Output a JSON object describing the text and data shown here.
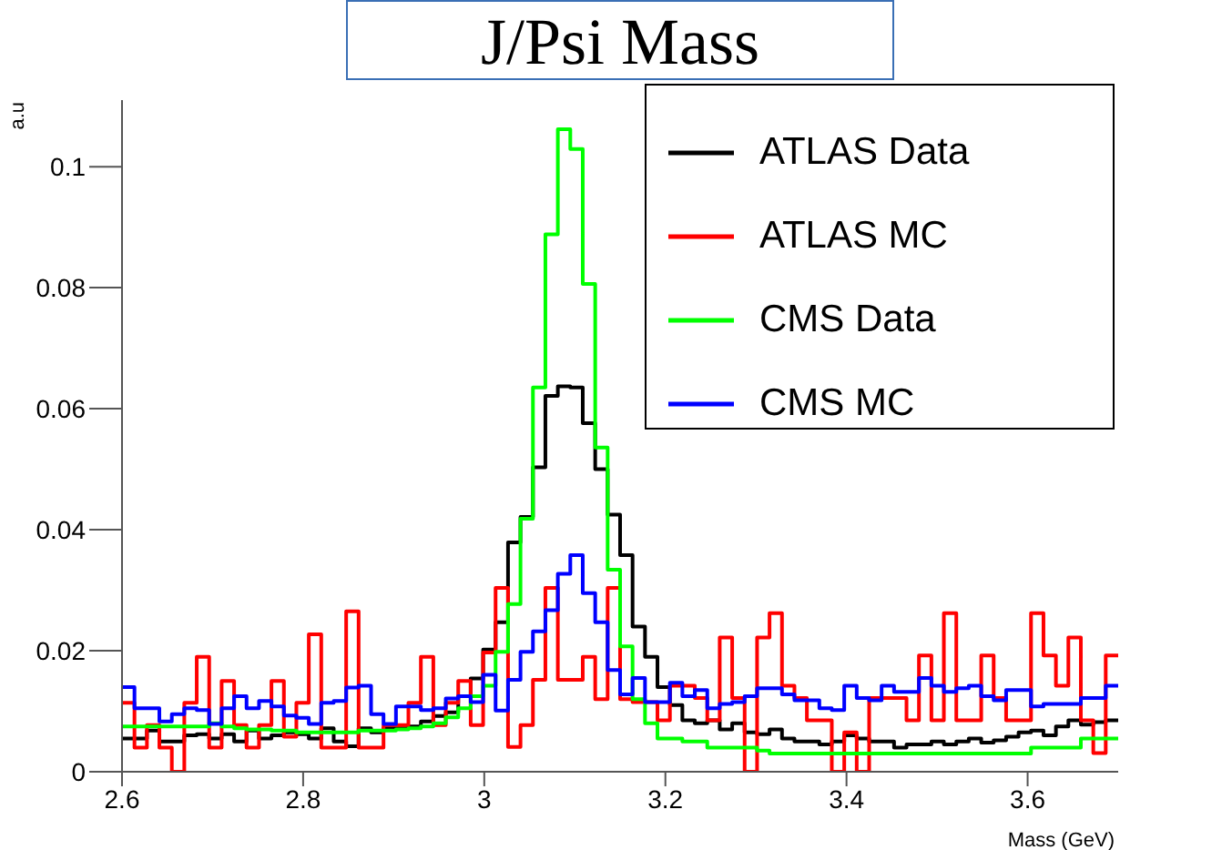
{
  "chart_data": {
    "type": "histogram",
    "title": "J/Psi Mass",
    "xlabel": "Mass (GeV)",
    "ylabel": "a.u",
    "bins": [
      2.6,
      2.61375,
      2.6275,
      2.64125,
      2.655,
      2.66875,
      2.6825,
      2.69625,
      2.71,
      2.72375,
      2.7375,
      2.75125,
      2.765,
      2.77875,
      2.7925,
      2.80625,
      2.82,
      2.83375,
      2.8475,
      2.86125,
      2.875,
      2.88875,
      2.9025,
      2.91625,
      2.93,
      2.94375,
      2.9575,
      2.97125,
      2.985,
      2.99875,
      3.0125,
      3.02625,
      3.04,
      3.05375,
      3.0675,
      3.08125,
      3.095,
      3.10875,
      3.1225,
      3.13625,
      3.15,
      3.16375,
      3.1775,
      3.19125,
      3.205,
      3.21875,
      3.2325,
      3.24625,
      3.26,
      3.27375,
      3.2875,
      3.30125,
      3.315,
      3.32875,
      3.3425,
      3.35625,
      3.37,
      3.38375,
      3.3975,
      3.41125,
      3.425,
      3.43875,
      3.4525,
      3.46625,
      3.48,
      3.49375,
      3.5075,
      3.52125,
      3.535,
      3.54875,
      3.5625,
      3.57625,
      3.59,
      3.60375,
      3.6175,
      3.63125,
      3.645,
      3.65875,
      3.6725,
      3.68625,
      3.7
    ],
    "series": [
      {
        "name": "ATLAS Data",
        "color": "#000000",
        "values": [
          0.0055,
          0.0055,
          0.0068,
          0.005,
          0.005,
          0.006,
          0.0062,
          0.0055,
          0.0062,
          0.005,
          0.0068,
          0.0055,
          0.006,
          0.0065,
          0.0062,
          0.0055,
          0.0072,
          0.005,
          0.0042,
          0.0072,
          0.0065,
          0.0072,
          0.0072,
          0.0075,
          0.0083,
          0.0092,
          0.0098,
          0.0125,
          0.0154,
          0.0202,
          0.0247,
          0.0379,
          0.0421,
          0.0503,
          0.0621,
          0.0637,
          0.0635,
          0.0576,
          0.05,
          0.0425,
          0.0358,
          0.024,
          0.019,
          0.014,
          0.011,
          0.0085,
          0.008,
          0.0085,
          0.007,
          0.008,
          0.0065,
          0.0062,
          0.007,
          0.0055,
          0.005,
          0.005,
          0.0045,
          0.005,
          0.006,
          0.0055,
          0.005,
          0.005,
          0.004,
          0.0045,
          0.0045,
          0.005,
          0.0045,
          0.005,
          0.0055,
          0.0048,
          0.0052,
          0.0058,
          0.0065,
          0.0068,
          0.006,
          0.0075,
          0.0085,
          0.0078,
          0.0082,
          0.0085
        ]
      },
      {
        "name": "ATLAS MC",
        "color": "#ff0000",
        "values": [
          0.0114,
          0.004,
          0.0077,
          0.004,
          0,
          0.0114,
          0.019,
          0.004,
          0.015,
          0.0077,
          0.004,
          0.0077,
          0.015,
          0.0058,
          0.0114,
          0.0227,
          0.004,
          0.004,
          0.0265,
          0.004,
          0.004,
          0.0077,
          0.0077,
          0.0114,
          0.019,
          0.0077,
          0.0114,
          0.015,
          0.0077,
          0.0197,
          0.0304,
          0.0041,
          0.0077,
          0.0152,
          0.0304,
          0.0152,
          0.0152,
          0.019,
          0.012,
          0.0304,
          0.012,
          0.0115,
          0.0115,
          0.0085,
          0.0142,
          0.0142,
          0.0122,
          0.0085,
          0.0222,
          0.0122,
          0,
          0.0222,
          0.0262,
          0.0142,
          0.0122,
          0.0085,
          0.0085,
          0,
          0.0065,
          0,
          0.0122,
          0.0122,
          0.0122,
          0.0085,
          0.0192,
          0.0085,
          0.0262,
          0.0085,
          0.0085,
          0.0192,
          0.0122,
          0.0085,
          0.0085,
          0.0262,
          0.0192,
          0.0142,
          0.0222,
          0.0085,
          0.0031,
          0.0192
        ]
      },
      {
        "name": "CMS Data",
        "color": "#00ff00",
        "values": [
          0.0075,
          0.0075,
          0.0075,
          0.0075,
          0.0075,
          0.0075,
          0.0075,
          0.008,
          0.0075,
          0.0072,
          0.007,
          0.007,
          0.0068,
          0.0068,
          0.0065,
          0.0065,
          0.0065,
          0.0065,
          0.0065,
          0.0068,
          0.0068,
          0.0068,
          0.007,
          0.0072,
          0.0075,
          0.008,
          0.009,
          0.0105,
          0.0125,
          0.0142,
          0.0198,
          0.0277,
          0.0418,
          0.0635,
          0.0888,
          0.1062,
          0.1029,
          0.0806,
          0.0536,
          0.0334,
          0.0207,
          0.012,
          0.008,
          0.0055,
          0.0055,
          0.005,
          0.005,
          0.004,
          0.004,
          0.004,
          0.004,
          0.0035,
          0.003,
          0.003,
          0.003,
          0.003,
          0.003,
          0.003,
          0.003,
          0.003,
          0.003,
          0.003,
          0.003,
          0.003,
          0.003,
          0.003,
          0.003,
          0.003,
          0.003,
          0.003,
          0.003,
          0.003,
          0.003,
          0.004,
          0.004,
          0.004,
          0.004,
          0.0055,
          0.0055,
          0.0055
        ]
      },
      {
        "name": "CMS MC",
        "color": "#0000ff",
        "values": [
          0.014,
          0.0105,
          0.0105,
          0.0083,
          0.0095,
          0.0105,
          0.0102,
          0.0079,
          0.0105,
          0.0125,
          0.0105,
          0.0117,
          0.0108,
          0.0093,
          0.0089,
          0.0079,
          0.0114,
          0.0117,
          0.0139,
          0.0142,
          0.0095,
          0.0079,
          0.0108,
          0.0108,
          0.0102,
          0.0105,
          0.0121,
          0.0125,
          0.0115,
          0.016,
          0.0101,
          0.0152,
          0.0198,
          0.0232,
          0.0267,
          0.0327,
          0.0358,
          0.0295,
          0.0247,
          0.0168,
          0.0128,
          0.0155,
          0.0115,
          0.0115,
          0.0147,
          0.0125,
          0.0135,
          0.0105,
          0.0112,
          0.0115,
          0.0125,
          0.0138,
          0.0138,
          0.0128,
          0.0118,
          0.0118,
          0.0105,
          0.0102,
          0.0142,
          0.0122,
          0.0118,
          0.0142,
          0.0132,
          0.0132,
          0.0155,
          0.0142,
          0.0132,
          0.0138,
          0.0142,
          0.0125,
          0.0118,
          0.0135,
          0.0135,
          0.0108,
          0.0112,
          0.0112,
          0.0112,
          0.0122,
          0.0122,
          0.0142
        ]
      }
    ],
    "xlim": [
      2.6,
      3.7
    ],
    "xticks": [
      2.6,
      2.8,
      3,
      3.2,
      3.4,
      3.6
    ],
    "ylim": [
      0,
      0.111
    ],
    "yticks": [
      0,
      0.02,
      0.04,
      0.06,
      0.08,
      0.1
    ],
    "grid": false,
    "legend": "top right"
  }
}
